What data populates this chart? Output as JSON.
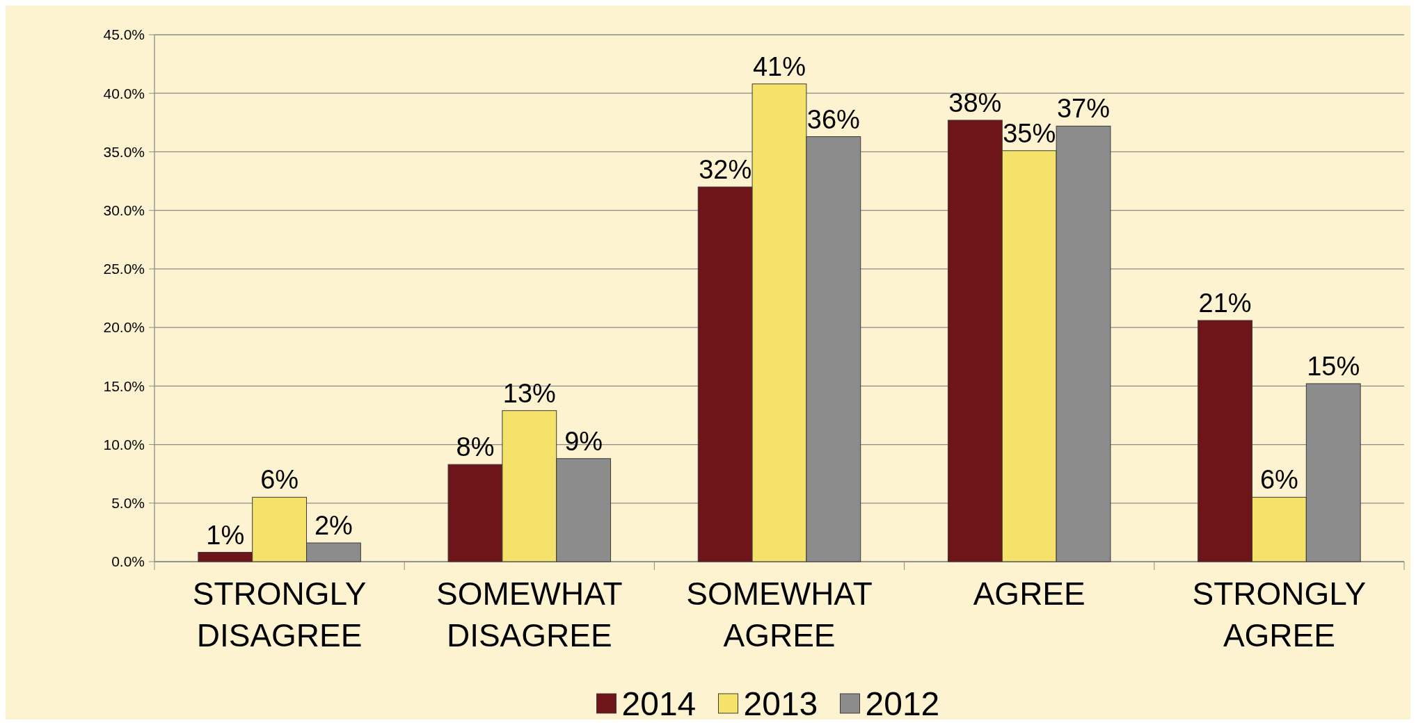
{
  "chart_data": {
    "type": "bar",
    "categories": [
      "STRONGLY DISAGREE",
      "SOMEWHAT DISAGREE",
      "SOMEWHAT AGREE",
      "AGREE",
      "STRONGLY AGREE"
    ],
    "series": [
      {
        "name": "2014",
        "color": "#6e1519",
        "values": [
          0.8,
          8.3,
          32.0,
          37.7,
          20.6
        ],
        "value_labels": [
          "1%",
          "8%",
          "32%",
          "38%",
          "21%"
        ]
      },
      {
        "name": "2013",
        "color": "#f5e26a",
        "values": [
          5.5,
          12.9,
          40.8,
          35.1,
          5.5
        ],
        "value_labels": [
          "6%",
          "13%",
          "41%",
          "35%",
          "6%"
        ]
      },
      {
        "name": "2012",
        "color": "#8c8c8c",
        "values": [
          1.6,
          8.8,
          36.3,
          37.2,
          15.2
        ],
        "value_labels": [
          "2%",
          "9%",
          "36%",
          "37%",
          "15%"
        ]
      }
    ],
    "ylim": [
      0,
      45
    ],
    "yticks": [
      {
        "value": 0,
        "label": "0.0%"
      },
      {
        "value": 5,
        "label": "5.0%"
      },
      {
        "value": 10,
        "label": "10.0%"
      },
      {
        "value": 15,
        "label": "15.0%"
      },
      {
        "value": 20,
        "label": "20.0%"
      },
      {
        "value": 25,
        "label": "25.0%"
      },
      {
        "value": 30,
        "label": "30.0%"
      },
      {
        "value": 35,
        "label": "35.0%"
      },
      {
        "value": 40,
        "label": "40.0%"
      },
      {
        "value": 45,
        "label": "45.0%"
      }
    ],
    "grid": "y",
    "legend": "bottom"
  }
}
